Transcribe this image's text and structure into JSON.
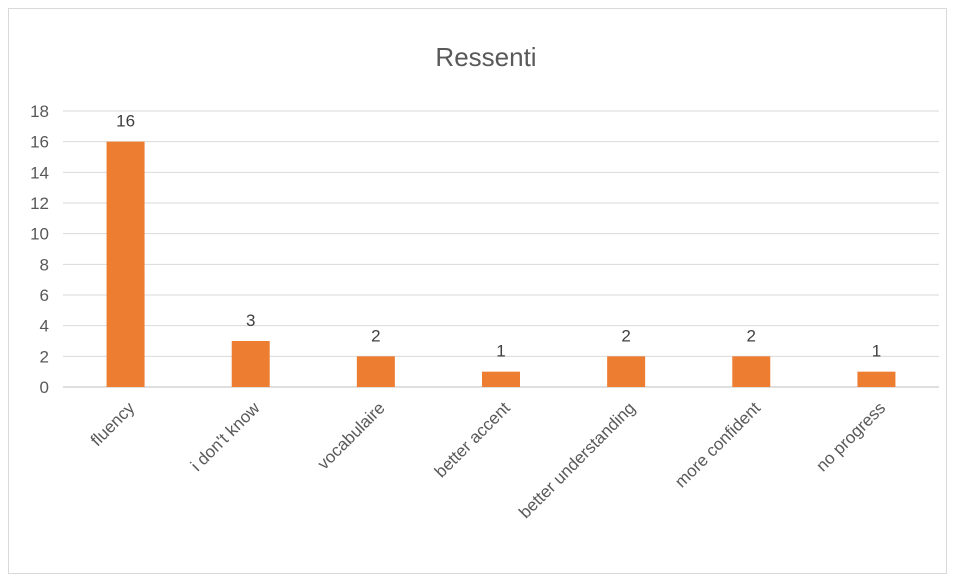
{
  "chart_data": {
    "type": "bar",
    "title": "Ressenti",
    "categories": [
      "fluency",
      "i don't know",
      "vocabulaire",
      "better accent",
      "better understanding",
      "more confident",
      "no progress"
    ],
    "values": [
      16,
      3,
      2,
      1,
      2,
      2,
      1
    ],
    "ylim": [
      0,
      18
    ],
    "yticks": [
      0,
      2,
      4,
      6,
      8,
      10,
      12,
      14,
      16,
      18
    ],
    "grid": true,
    "data_labels": true,
    "bar_color": "#ED7D31",
    "legend": "none"
  }
}
